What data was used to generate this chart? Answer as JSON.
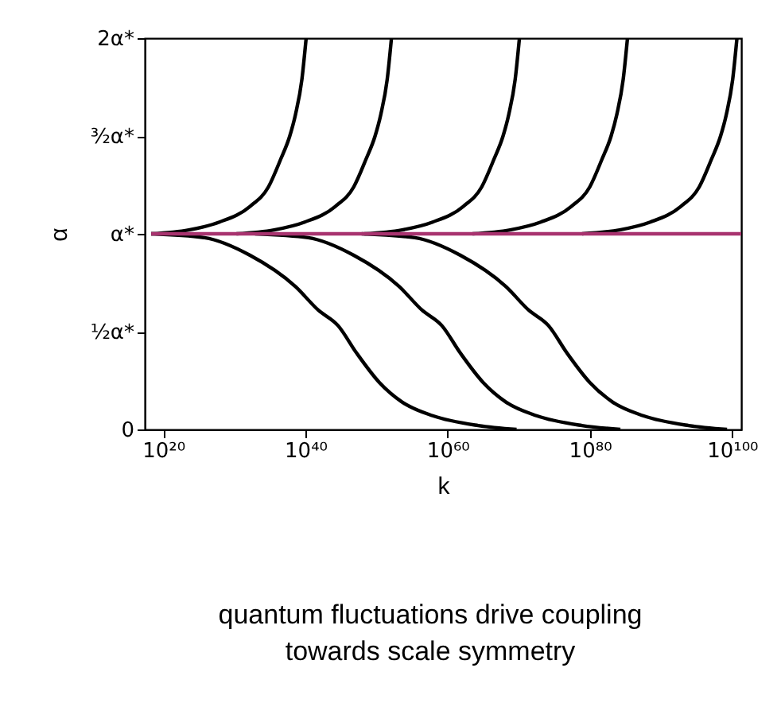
{
  "chart_data": {
    "type": "line",
    "xlabel": "k",
    "ylabel": "α",
    "log": "x",
    "grid": false,
    "legend": false,
    "marker": "none",
    "line_style": "solid",
    "xlim": [
      2.5e+17,
      2e+101
    ],
    "xticks": [
      {
        "value": 1e+20,
        "label": "10²⁰"
      },
      {
        "value": 1e+40,
        "label": "10⁴⁰"
      },
      {
        "value": 1e+60,
        "label": "10⁶⁰"
      },
      {
        "value": 1e+80,
        "label": "10⁸⁰"
      },
      {
        "value": 1e+100,
        "label": "10¹⁰⁰"
      }
    ],
    "ylim": [
      0,
      2
    ],
    "yticks": [
      0,
      {
        "value": 0.5,
        "label": "½α*"
      },
      {
        "value": 1,
        "label": "α*"
      },
      {
        "value": 1.5,
        "label": "³⁄₂α*"
      },
      {
        "value": 2,
        "label": "2α*"
      }
    ],
    "series": [
      {
        "color": "#000000",
        "x": [
          2e+18,
          4e+23,
          8e+27,
          1.6e+32,
          6.3e+34,
          3.2e+36,
          6.3e+37,
          4e+38,
          3.2e+39,
          1.26e+40
        ],
        "values": [
          1.0,
          1.02,
          1.06,
          1.14,
          1.24,
          1.38,
          1.5,
          1.61,
          1.79,
          2.0
        ]
      },
      {
        "color": "#000000",
        "x": [
          2e+30,
          4e+35,
          8e+39,
          1.6e+44,
          6.3e+46,
          3.2e+48,
          6.3e+49,
          4e+50,
          3.2e+51,
          1.26e+52
        ],
        "values": [
          1.0,
          1.02,
          1.06,
          1.14,
          1.24,
          1.38,
          1.5,
          1.61,
          1.79,
          2.0
        ]
      },
      {
        "color": "#000000",
        "x": [
          2e+48,
          4e+53,
          8e+57,
          1.6e+62,
          6.3e+64,
          3.2e+66,
          6.3e+67,
          4e+68,
          3.2e+69,
          1.26e+70
        ],
        "values": [
          1.0,
          1.02,
          1.06,
          1.14,
          1.24,
          1.38,
          1.5,
          1.61,
          1.79,
          2.0
        ]
      },
      {
        "color": "#000000",
        "x": [
          3.2e+63,
          6.3e+68,
          1.26e+73,
          2.5e+77,
          1e+80,
          5e+81,
          1e+83,
          6.3e+83,
          5e+84,
          2e+85
        ],
        "values": [
          1.0,
          1.02,
          1.06,
          1.14,
          1.24,
          1.38,
          1.5,
          1.61,
          1.79,
          2.0
        ]
      },
      {
        "color": "#000000",
        "x": [
          8e+78,
          1.6e+84,
          3.2e+88,
          6.3e+92,
          2.5e+95,
          1.26e+97,
          2.5e+98,
          1.6e+99,
          1.26e+100,
          5e+100
        ],
        "values": [
          1.0,
          1.02,
          1.06,
          1.14,
          1.24,
          1.38,
          1.5,
          1.61,
          1.79,
          2.0
        ]
      },
      {
        "color": "#000000",
        "x": [
          2e+18,
          6.3e+25,
          1.6e+32,
          4e+38,
          6.3e+41,
          4e+44,
          1.6e+47,
          2.5e+50,
          4e+53,
          8e+57,
          2e+64,
          5e+69
        ],
        "values": [
          1.0,
          0.98,
          0.89,
          0.73,
          0.61,
          0.53,
          0.39,
          0.24,
          0.14,
          0.07,
          0.02,
          0
        ]
      },
      {
        "color": "#000000",
        "x": [
          8e+32,
          2.5e+40,
          6.3e+46,
          1.6e+53,
          2.5e+56,
          1.6e+59,
          6.3e+61,
          1e+65,
          1.6e+68,
          3.2e+72,
          8e+78,
          2e+84
        ],
        "values": [
          1.0,
          0.98,
          0.89,
          0.73,
          0.61,
          0.53,
          0.39,
          0.24,
          0.14,
          0.07,
          0.02,
          0
        ]
      },
      {
        "color": "#000000",
        "x": [
          8e+47,
          2.5e+55,
          6.3e+61,
          1.6e+68,
          2.5e+71,
          1.6e+74,
          6.3e+76,
          1e+80,
          1.6e+83,
          3.2e+87,
          8e+93,
          2e+99
        ],
        "values": [
          1.0,
          0.98,
          0.89,
          0.73,
          0.61,
          0.53,
          0.39,
          0.24,
          0.14,
          0.07,
          0.02,
          0
        ]
      },
      {
        "color": "#a8336f",
        "x": [
          2e+18,
          2e+101
        ],
        "values": [
          1,
          1
        ]
      }
    ],
    "annotations": [
      "quantum fluctuations drive coupling",
      "towards scale symmetry"
    ]
  }
}
